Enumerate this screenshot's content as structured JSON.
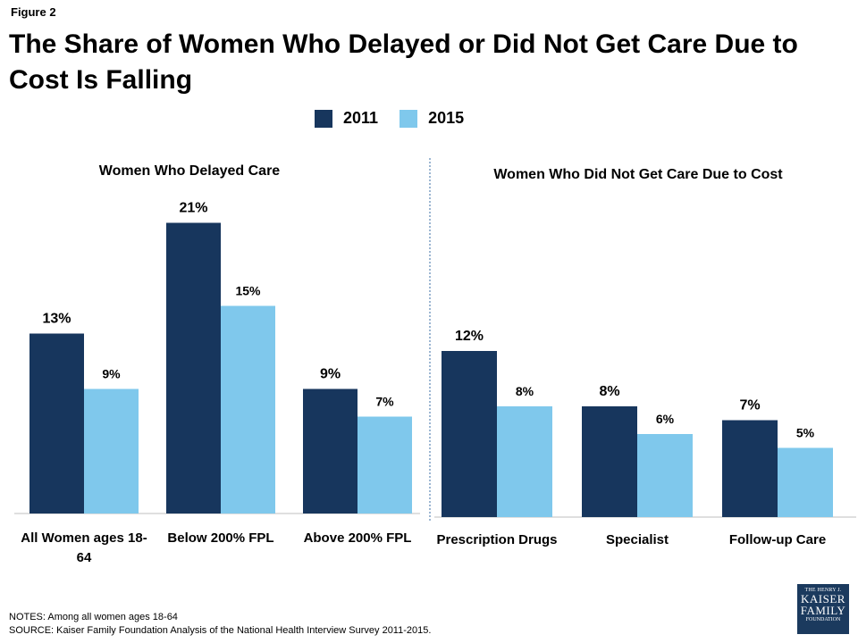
{
  "figure_label": "Figure 2",
  "title": "The Share of Women Who Delayed or Did Not Get Care Due to Cost Is Falling",
  "notes": "NOTES:  Among all women ages 18-64",
  "source": "SOURCE:  Kaiser Family Foundation Analysis of the National Health Interview Survey 2011-2015.",
  "logo": {
    "line1": "THE HENRY J.",
    "line2": "KAISER",
    "line3": "FAMILY",
    "line4": "FOUNDATION"
  },
  "colors": {
    "y2011": "#17365d",
    "y2015": "#7fc8ec",
    "divider": "#3a6ea5"
  },
  "chart_data": [
    {
      "type": "bar",
      "title": "Women Who Delayed Care",
      "categories": [
        "All Women ages 18-64",
        "Below 200% FPL",
        "Above 200% FPL"
      ],
      "series": [
        {
          "name": "2011",
          "values": [
            13,
            21,
            9
          ],
          "labels": [
            "13%",
            "21%",
            "9%"
          ]
        },
        {
          "name": "2015",
          "values": [
            9,
            15,
            7
          ],
          "labels": [
            "9%",
            "15%",
            "7%"
          ]
        }
      ],
      "ylim": [
        0,
        22
      ]
    },
    {
      "type": "bar",
      "title": "Women Who Did Not Get Care Due to Cost",
      "categories": [
        "Prescription Drugs",
        "Specialist",
        "Follow-up Care"
      ],
      "series": [
        {
          "name": "2011",
          "values": [
            12,
            8,
            7
          ],
          "labels": [
            "12%",
            "8%",
            "7%"
          ]
        },
        {
          "name": "2015",
          "values": [
            8,
            6,
            5
          ],
          "labels": [
            "8%",
            "6%",
            "5%"
          ]
        }
      ],
      "ylim": [
        0,
        22
      ]
    }
  ]
}
